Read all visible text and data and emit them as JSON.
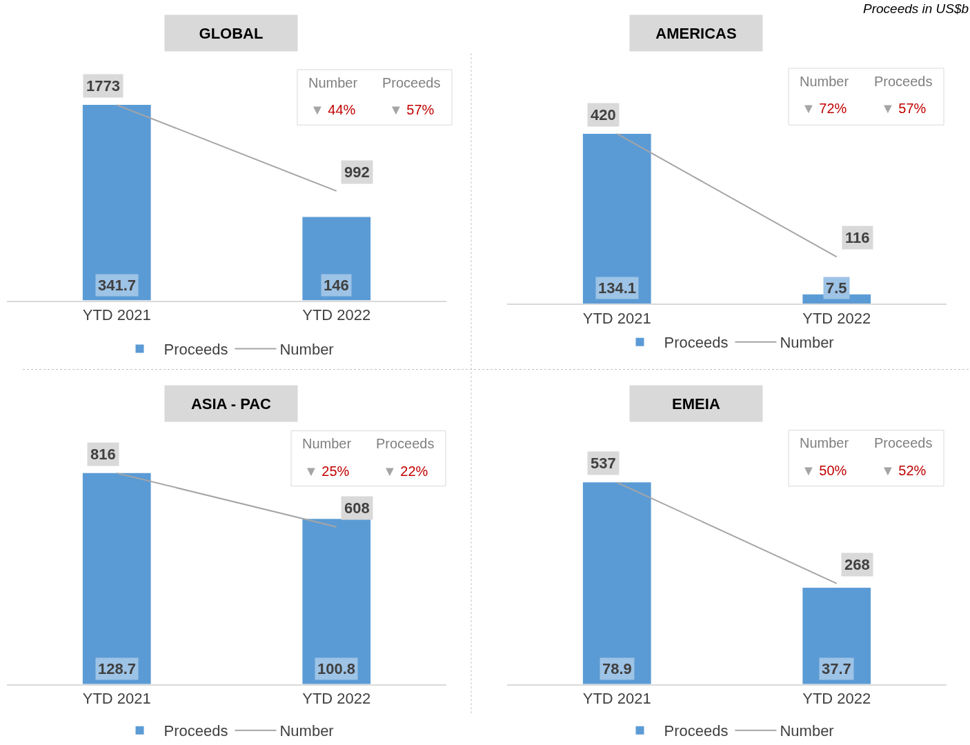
{
  "chart_data": [
    {
      "type": "bar",
      "title": "GLOBAL",
      "categories": [
        "YTD 2021",
        "YTD 2022"
      ],
      "series": [
        {
          "name": "Proceeds",
          "color": "#5b9bd5",
          "values": [
            341.7,
            146
          ]
        },
        {
          "name": "Number",
          "type": "line",
          "axis": "y2",
          "color": "#a5a5a5",
          "values": [
            1773,
            992
          ]
        }
      ],
      "data_labels": true,
      "legend": "bottom",
      "tick_labels": "x",
      "marker": "none",
      "line_style": "solid",
      "annotations": [
        "Number",
        "Proceeds",
        "▼ 44%",
        "▼ 57%",
        "Proceeds in US$b"
      ]
    },
    {
      "type": "bar",
      "title": "AMERICAS",
      "categories": [
        "YTD 2021",
        "YTD 2022"
      ],
      "series": [
        {
          "name": "Proceeds",
          "color": "#5b9bd5",
          "values": [
            134.1,
            7.5
          ]
        },
        {
          "name": "Number",
          "type": "line",
          "axis": "y2",
          "color": "#a5a5a5",
          "values": [
            420,
            116
          ]
        }
      ],
      "data_labels": true,
      "legend": "bottom",
      "tick_labels": "x",
      "marker": "none",
      "line_style": "solid",
      "annotations": [
        "Number",
        "Proceeds",
        "▼ 72%",
        "▼ 57%"
      ]
    },
    {
      "type": "bar",
      "title": "ASIA - PAC",
      "categories": [
        "YTD 2021",
        "YTD 2022"
      ],
      "series": [
        {
          "name": "Proceeds",
          "color": "#5b9bd5",
          "values": [
            128.7,
            100.8
          ]
        },
        {
          "name": "Number",
          "type": "line",
          "axis": "y2",
          "color": "#a5a5a5",
          "values": [
            816,
            608
          ]
        }
      ],
      "data_labels": true,
      "legend": "bottom",
      "tick_labels": "x",
      "marker": "none",
      "line_style": "solid",
      "annotations": [
        "Number",
        "Proceeds",
        "▼ 25%",
        "▼ 22%"
      ]
    },
    {
      "type": "bar",
      "title": "EMEIA",
      "categories": [
        "YTD 2021",
        "YTD 2022"
      ],
      "series": [
        {
          "name": "Proceeds",
          "color": "#5b9bd5",
          "values": [
            78.9,
            37.7
          ]
        },
        {
          "name": "Number",
          "type": "line",
          "axis": "y2",
          "color": "#a5a5a5",
          "values": [
            537,
            268
          ]
        }
      ],
      "data_labels": true,
      "legend": "bottom",
      "tick_labels": "x",
      "marker": "none",
      "line_style": "solid",
      "annotations": [
        "Number",
        "Proceeds",
        "▼ 50%",
        "▼ 52%"
      ]
    }
  ]
}
